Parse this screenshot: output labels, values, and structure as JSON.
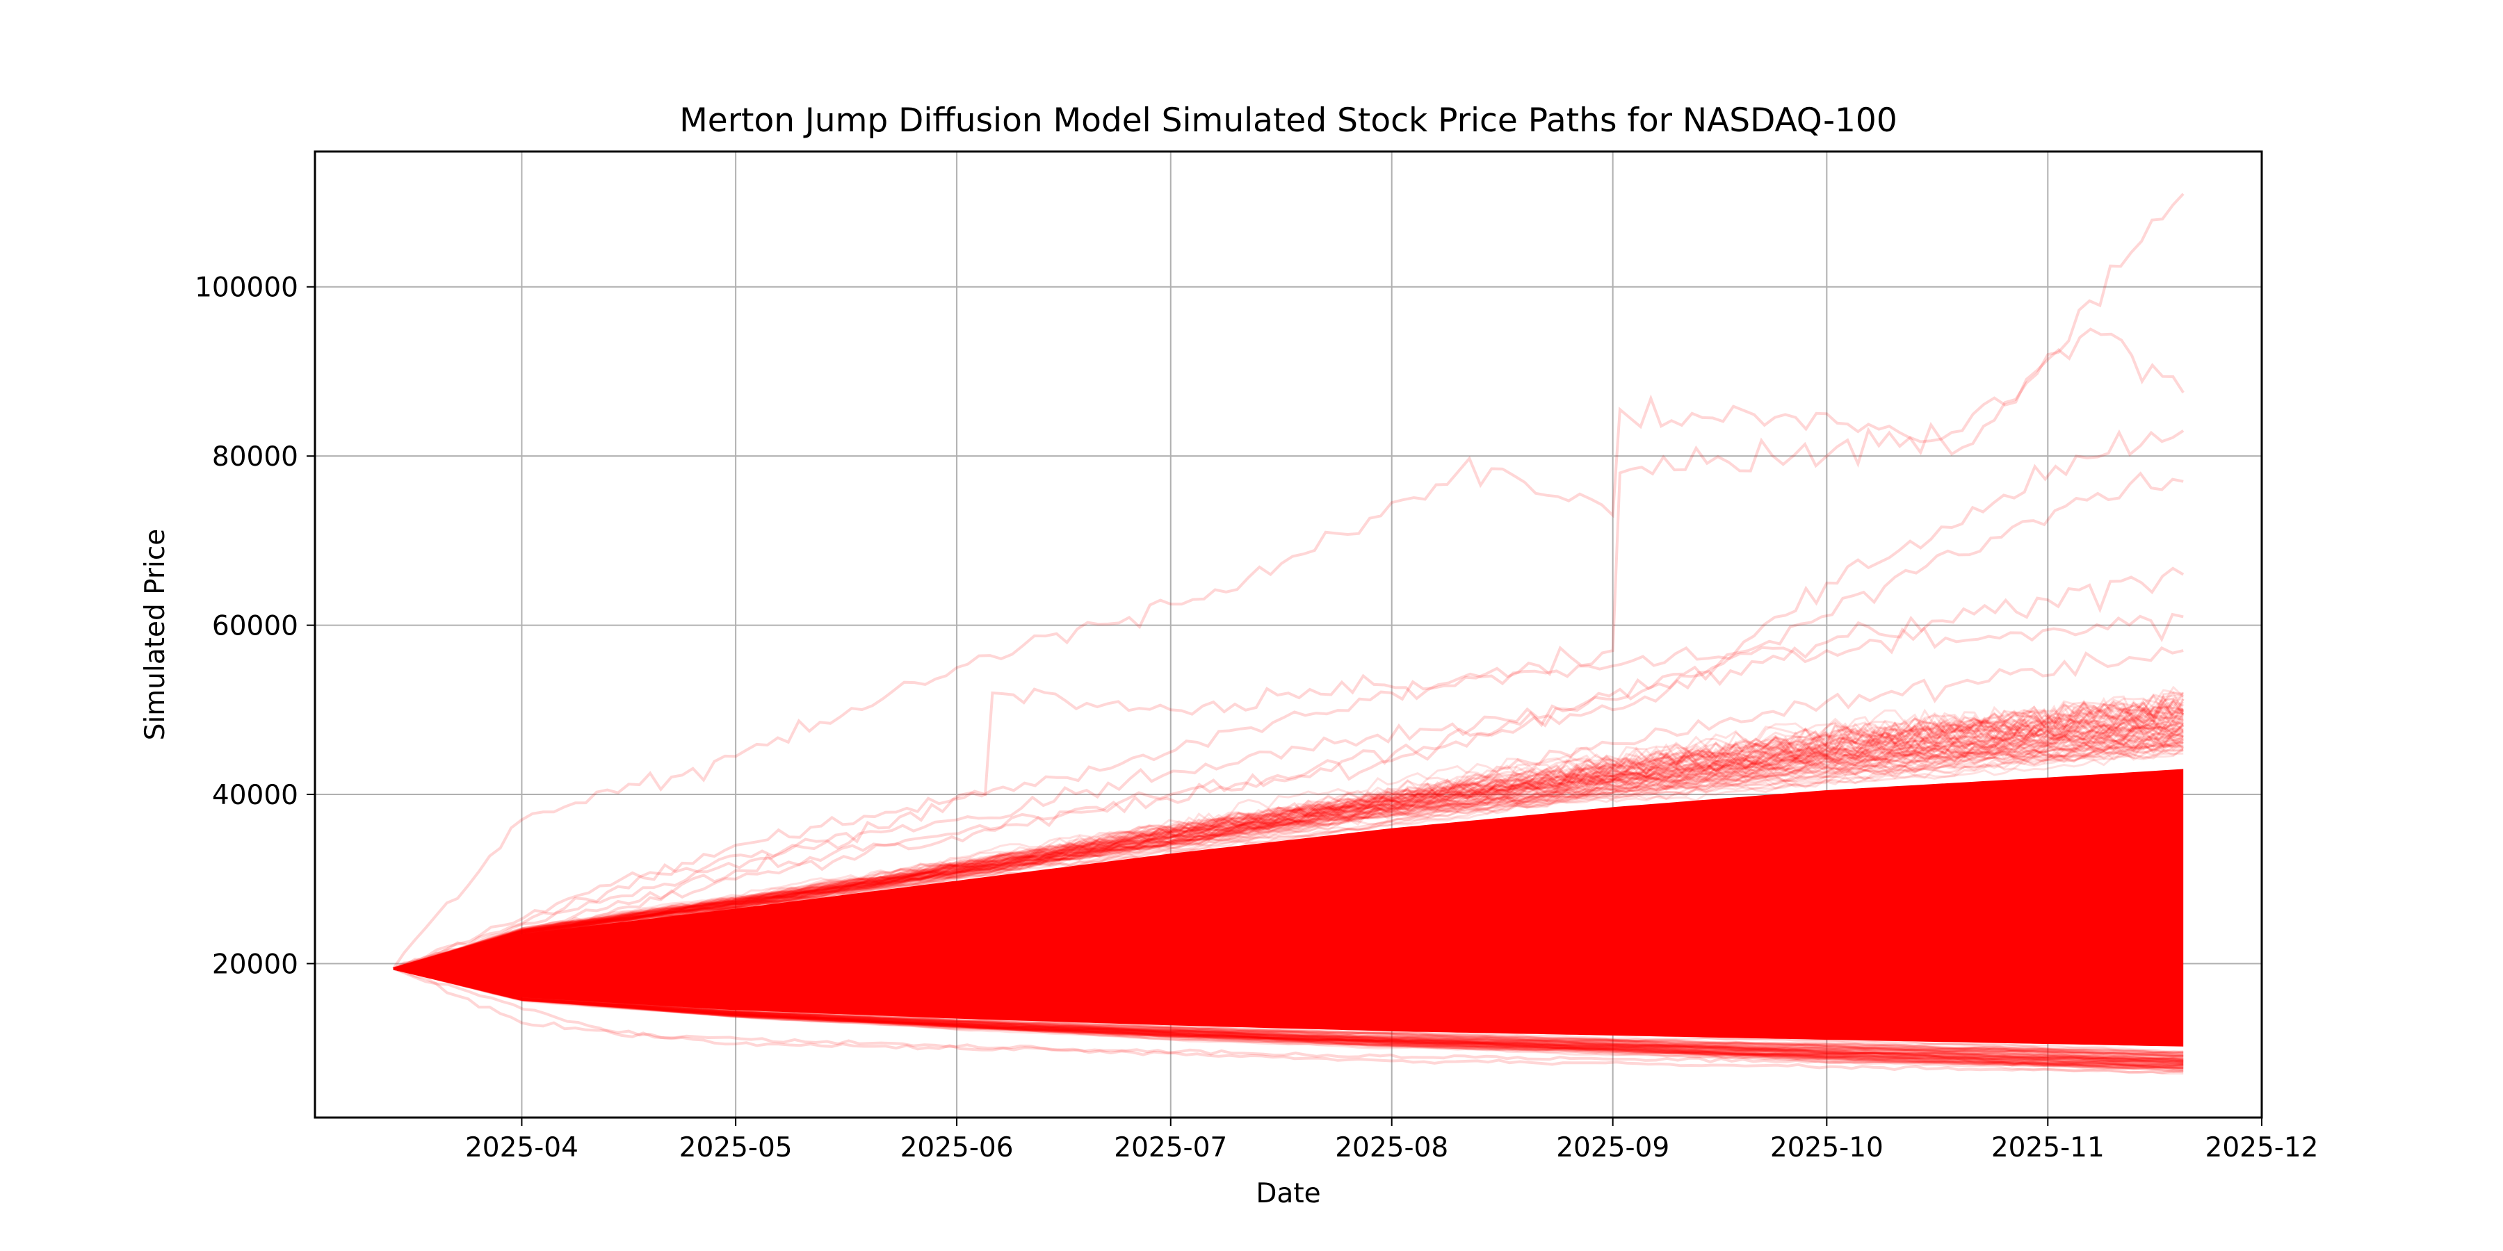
{
  "chart_data": {
    "type": "line",
    "title": "Merton Jump Diffusion Model Simulated Stock Price Paths for NASDAQ-100",
    "xlabel": "Date",
    "ylabel": "Simulated Price",
    "x_start": "2025-03-14",
    "x_end": "2025-11-20",
    "xlim": [
      "2025-03-03",
      "2025-12-01"
    ],
    "ylim": [
      1800,
      116000
    ],
    "x_ticks": [
      "2025-04",
      "2025-05",
      "2025-06",
      "2025-07",
      "2025-08",
      "2025-09",
      "2025-10",
      "2025-11",
      "2025-12"
    ],
    "y_ticks": [
      20000,
      40000,
      60000,
      80000,
      100000
    ],
    "y_tick_labels": [
      "20000",
      "40000",
      "60000",
      "80000",
      "100000"
    ],
    "grid": true,
    "legend": false,
    "line_color": "#ff0000",
    "initial_price": 19400,
    "envelope": {
      "upper": [
        {
          "x": "2025-03-14",
          "y": 19400
        },
        {
          "x": "2025-04-01",
          "y": 23500
        },
        {
          "x": "2025-05-01",
          "y": 26500
        },
        {
          "x": "2025-06-01",
          "y": 29800
        },
        {
          "x": "2025-07-01",
          "y": 33000
        },
        {
          "x": "2025-08-01",
          "y": 36000
        },
        {
          "x": "2025-09-01",
          "y": 38500
        },
        {
          "x": "2025-10-01",
          "y": 40500
        },
        {
          "x": "2025-11-01",
          "y": 42000
        },
        {
          "x": "2025-11-20",
          "y": 43000
        }
      ],
      "lower": [
        {
          "x": "2025-03-14",
          "y": 19400
        },
        {
          "x": "2025-04-01",
          "y": 16000
        },
        {
          "x": "2025-05-01",
          "y": 14500
        },
        {
          "x": "2025-06-01",
          "y": 13500
        },
        {
          "x": "2025-07-01",
          "y": 12700
        },
        {
          "x": "2025-08-01",
          "y": 12000
        },
        {
          "x": "2025-09-01",
          "y": 11500
        },
        {
          "x": "2025-10-01",
          "y": 11000
        },
        {
          "x": "2025-11-01",
          "y": 10500
        },
        {
          "x": "2025-11-20",
          "y": 10200
        }
      ]
    },
    "series": [
      {
        "values": [
          {
            "x": "2025-03-14",
            "y": 19400
          },
          {
            "x": "2025-04-01",
            "y": 37000
          },
          {
            "x": "2025-05-01",
            "y": 44500
          },
          {
            "x": "2025-06-01",
            "y": 55000
          },
          {
            "x": "2025-06-15",
            "y": 59000
          },
          {
            "x": "2025-07-01",
            "y": 62500
          },
          {
            "x": "2025-07-15",
            "y": 66000
          },
          {
            "x": "2025-08-01",
            "y": 74500
          },
          {
            "x": "2025-08-15",
            "y": 78500
          },
          {
            "x": "2025-09-01",
            "y": 73000
          },
          {
            "x": "2025-09-02",
            "y": 85500
          },
          {
            "x": "2025-09-15",
            "y": 84500
          },
          {
            "x": "2025-10-01",
            "y": 85000
          },
          {
            "x": "2025-10-20",
            "y": 81000
          },
          {
            "x": "2025-11-01",
            "y": 92000
          },
          {
            "x": "2025-11-20",
            "y": 111000
          }
        ]
      },
      {
        "values": [
          {
            "x": "2025-03-14",
            "y": 19400
          },
          {
            "x": "2025-05-01",
            "y": 34000
          },
          {
            "x": "2025-06-15",
            "y": 42000
          },
          {
            "x": "2025-08-01",
            "y": 52000
          },
          {
            "x": "2025-09-01",
            "y": 57000
          },
          {
            "x": "2025-09-02",
            "y": 78000
          },
          {
            "x": "2025-10-01",
            "y": 80000
          },
          {
            "x": "2025-10-20",
            "y": 83000
          },
          {
            "x": "2025-11-07",
            "y": 95000
          },
          {
            "x": "2025-11-20",
            "y": 87500
          }
        ]
      },
      {
        "values": [
          {
            "x": "2025-03-14",
            "y": 19400
          },
          {
            "x": "2025-05-01",
            "y": 30000
          },
          {
            "x": "2025-06-20",
            "y": 38000
          },
          {
            "x": "2025-08-01",
            "y": 44000
          },
          {
            "x": "2025-09-15",
            "y": 55000
          },
          {
            "x": "2025-10-01",
            "y": 65000
          },
          {
            "x": "2025-10-20",
            "y": 72000
          },
          {
            "x": "2025-11-05",
            "y": 80000
          },
          {
            "x": "2025-11-20",
            "y": 83000
          }
        ]
      },
      {
        "values": [
          {
            "x": "2025-03-14",
            "y": 19400
          },
          {
            "x": "2025-05-01",
            "y": 31000
          },
          {
            "x": "2025-07-01",
            "y": 40000
          },
          {
            "x": "2025-08-15",
            "y": 47000
          },
          {
            "x": "2025-09-20",
            "y": 57000
          },
          {
            "x": "2025-10-15",
            "y": 67000
          },
          {
            "x": "2025-11-05",
            "y": 75000
          },
          {
            "x": "2025-11-20",
            "y": 77000
          }
        ]
      },
      {
        "values": [
          {
            "x": "2025-03-14",
            "y": 19400
          },
          {
            "x": "2025-04-15",
            "y": 30000
          },
          {
            "x": "2025-06-01",
            "y": 37000
          },
          {
            "x": "2025-07-15",
            "y": 45000
          },
          {
            "x": "2025-09-01",
            "y": 50000
          },
          {
            "x": "2025-10-01",
            "y": 58000
          },
          {
            "x": "2025-11-01",
            "y": 63000
          },
          {
            "x": "2025-11-20",
            "y": 66000
          }
        ]
      },
      {
        "values": [
          {
            "x": "2025-03-14",
            "y": 19400
          },
          {
            "x": "2025-04-15",
            "y": 28000
          },
          {
            "x": "2025-06-05",
            "y": 40000
          },
          {
            "x": "2025-06-06",
            "y": 52000
          },
          {
            "x": "2025-07-01",
            "y": 50000
          },
          {
            "x": "2025-08-15",
            "y": 54000
          },
          {
            "x": "2025-10-01",
            "y": 57000
          },
          {
            "x": "2025-11-20",
            "y": 61000
          }
        ]
      },
      {
        "values": [
          {
            "x": "2025-03-14",
            "y": 19400
          },
          {
            "x": "2025-05-01",
            "y": 27000
          },
          {
            "x": "2025-06-15",
            "y": 33000
          },
          {
            "x": "2025-08-01",
            "y": 40000
          },
          {
            "x": "2025-09-01",
            "y": 46000
          },
          {
            "x": "2025-10-01",
            "y": 51000
          },
          {
            "x": "2025-11-20",
            "y": 57000
          }
        ]
      },
      {
        "values": [
          {
            "x": "2025-03-14",
            "y": 19400
          },
          {
            "x": "2025-04-01",
            "y": 13000
          },
          {
            "x": "2025-05-01",
            "y": 10500
          },
          {
            "x": "2025-06-15",
            "y": 9800
          },
          {
            "x": "2025-08-01",
            "y": 8500
          },
          {
            "x": "2025-09-15",
            "y": 8000
          },
          {
            "x": "2025-11-20",
            "y": 7200
          }
        ]
      },
      {
        "values": [
          {
            "x": "2025-03-14",
            "y": 19400
          },
          {
            "x": "2025-04-15",
            "y": 11500
          },
          {
            "x": "2025-06-01",
            "y": 10200
          },
          {
            "x": "2025-07-20",
            "y": 9200
          },
          {
            "x": "2025-09-01",
            "y": 8700
          },
          {
            "x": "2025-10-15",
            "y": 8300
          },
          {
            "x": "2025-11-20",
            "y": 8000
          }
        ]
      }
    ]
  }
}
